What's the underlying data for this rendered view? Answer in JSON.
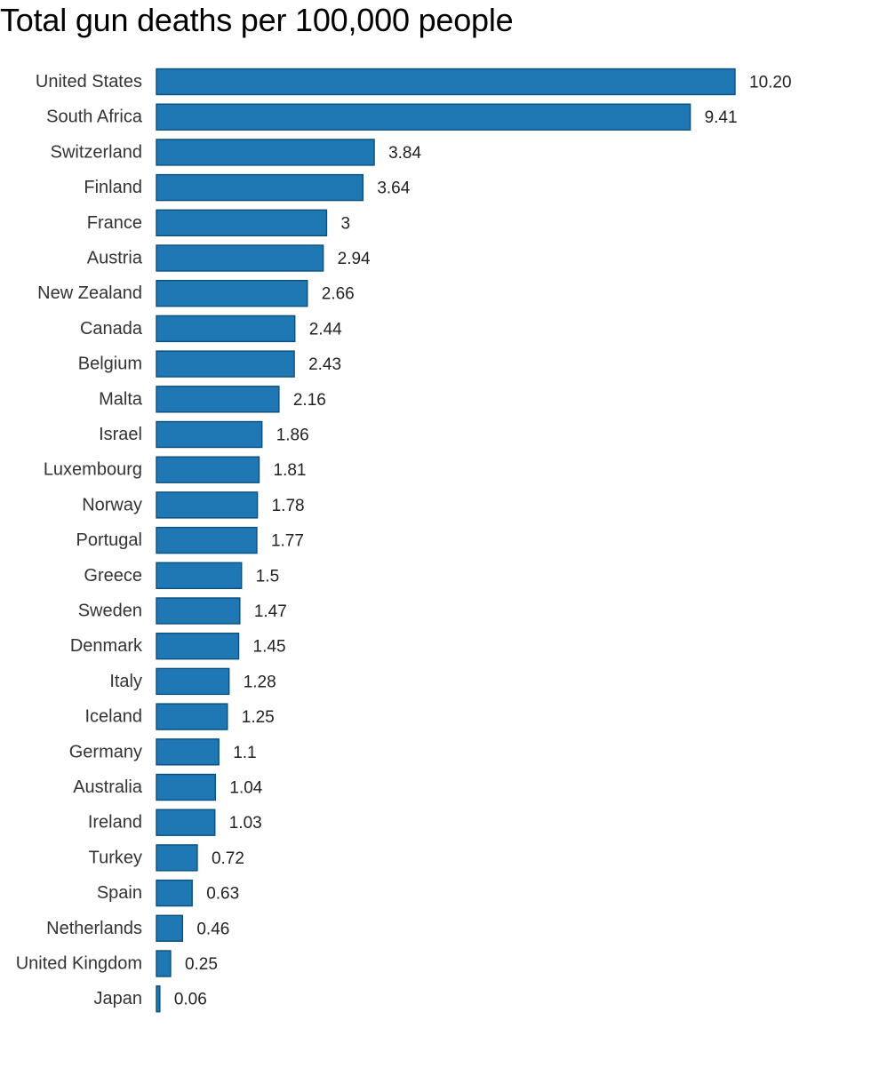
{
  "chart_data": {
    "type": "bar",
    "orientation": "horizontal",
    "title": "Total gun deaths per 100,000 people",
    "xlabel": "",
    "ylabel": "",
    "grid": false,
    "bar_color": "#1F77B4",
    "bar_edge_color": "#0B4F7D",
    "categories": [
      "United States",
      "South Africa",
      "Switzerland",
      "Finland",
      "France",
      "Austria",
      "New Zealand",
      "Canada",
      "Belgium",
      "Malta",
      "Israel",
      "Luxembourg",
      "Norway",
      "Portugal",
      "Greece",
      "Sweden",
      "Denmark",
      "Italy",
      "Iceland",
      "Germany",
      "Australia",
      "Ireland",
      "Turkey",
      "Spain",
      "Netherlands",
      "United Kingdom",
      "Japan"
    ],
    "values": [
      10.2,
      9.41,
      3.84,
      3.64,
      3,
      2.94,
      2.66,
      2.44,
      2.43,
      2.16,
      1.86,
      1.81,
      1.78,
      1.77,
      1.5,
      1.47,
      1.45,
      1.28,
      1.25,
      1.1,
      1.04,
      1.03,
      0.72,
      0.63,
      0.46,
      0.25,
      0.06
    ],
    "value_labels": [
      "10.20",
      "9.41",
      "3.84",
      "3.64",
      "3",
      "2.94",
      "2.66",
      "2.44",
      "2.43",
      "2.16",
      "1.86",
      "1.81",
      "1.78",
      "1.77",
      "1.5",
      "1.47",
      "1.45",
      "1.28",
      "1.25",
      "1.1",
      "1.04",
      "1.03",
      "0.72",
      "0.63",
      "0.46",
      "0.25",
      "0.06"
    ],
    "xlim": [
      0,
      10.2
    ]
  }
}
